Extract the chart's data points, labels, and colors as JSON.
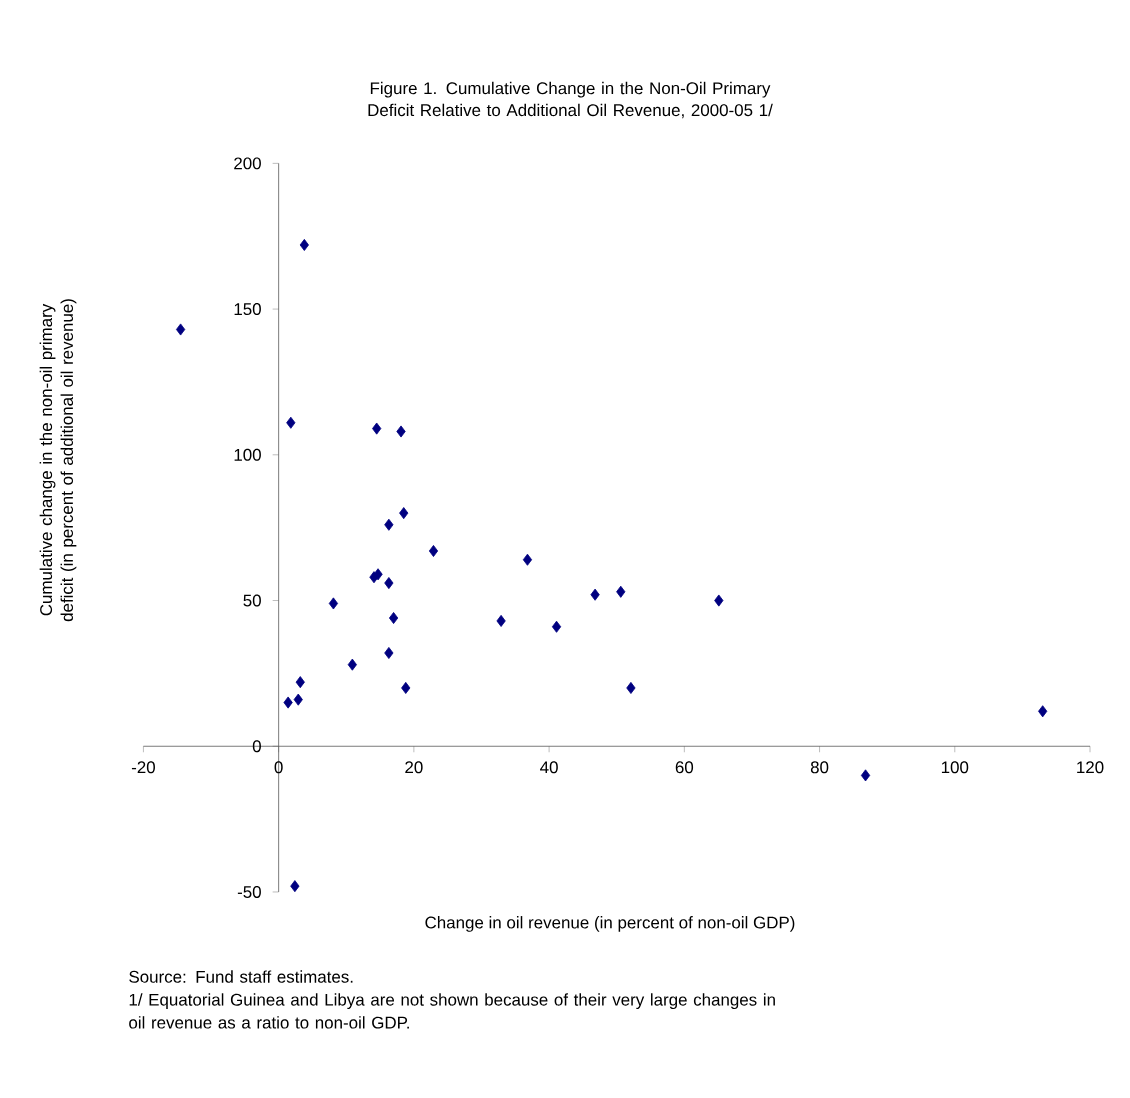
{
  "chart_data": {
    "type": "scatter",
    "title": "Figure 1. Cumulative Change in the Non-Oil Primary Deficit Relative to Additional Oil Revenue, 2000-05 1/",
    "xlabel": "Change in oil revenue (in percent of non-oil GDP)",
    "ylabel": "Cumulative change in the non-oil primary deficit (in percent of additional oil revenue)",
    "annotations": [
      "Source: Fund staff estimates.",
      "1/ Equatorial Guinea and Libya are not shown because of their very large changes in oil revenue as a ratio to non-oil GDP."
    ],
    "series": [
      {
        "color": "#000080",
        "x": [
          -14.5,
          3.8,
          1.8,
          14.5,
          18.1,
          18.5,
          16.3,
          22.9,
          8.1,
          14.1,
          14.7,
          16.3,
          17,
          10.9,
          16.3,
          18.8,
          1.4,
          2.9,
          3.2,
          32.9,
          36.8,
          41.1,
          46.8,
          2.4,
          50.6,
          52.1,
          65.1,
          86.8,
          113
        ],
        "values": [
          143,
          172,
          111,
          109,
          108,
          80,
          76,
          67,
          49,
          58,
          59,
          56,
          44,
          28,
          32,
          20,
          15,
          16,
          22,
          43,
          64,
          41,
          52,
          -48,
          53,
          20,
          50,
          -10,
          12
        ]
      }
    ],
    "xlim": [
      -20,
      120
    ],
    "ylim": [
      -50,
      200
    ],
    "xticks": [
      -20,
      0,
      20,
      40,
      60,
      80,
      100,
      120
    ],
    "yticks": [
      -50,
      0,
      50,
      100,
      150,
      200
    ],
    "marker": "diamond",
    "grid": false
  }
}
